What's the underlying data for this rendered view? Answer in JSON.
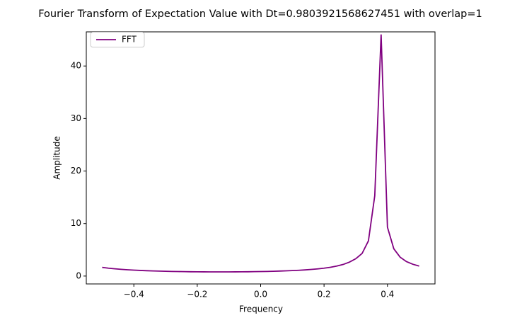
{
  "chart_data": {
    "type": "line",
    "title": "Fourier Transform of Expectation Value with Dt=0.9803921568627451 with overlap=1",
    "xlabel": "Frequency",
    "ylabel": "Amplitude",
    "x": [
      -0.5,
      -0.48,
      -0.46,
      -0.44,
      -0.42,
      -0.4,
      -0.38,
      -0.36,
      -0.34,
      -0.32,
      -0.3,
      -0.28,
      -0.26,
      -0.24,
      -0.22,
      -0.2,
      -0.18,
      -0.16,
      -0.14,
      -0.12,
      -0.1,
      -0.08,
      -0.06,
      -0.04,
      -0.02,
      0,
      0.02,
      0.04,
      0.06,
      0.08,
      0.1,
      0.12,
      0.14,
      0.16,
      0.18,
      0.2,
      0.22,
      0.24,
      0.26,
      0.28,
      0.3,
      0.32,
      0.34,
      0.36,
      0.38,
      0.4,
      0.42,
      0.44,
      0.46,
      0.48,
      0.5
    ],
    "series": [
      {
        "name": "FFT",
        "color": "#800080",
        "values": [
          1.65,
          1.5,
          1.38,
          1.28,
          1.2,
          1.13,
          1.07,
          1.02,
          0.98,
          0.94,
          0.91,
          0.88,
          0.86,
          0.84,
          0.82,
          0.81,
          0.8,
          0.79,
          0.79,
          0.79,
          0.79,
          0.8,
          0.81,
          0.82,
          0.84,
          0.86,
          0.88,
          0.91,
          0.95,
          0.99,
          1.04,
          1.1,
          1.17,
          1.26,
          1.37,
          1.5,
          1.67,
          1.9,
          2.2,
          2.65,
          3.3,
          4.3,
          6.7,
          15.3,
          46.0,
          9.3,
          5.2,
          3.6,
          2.75,
          2.25,
          1.9
        ]
      }
    ],
    "xlim": [
      -0.55,
      0.55
    ],
    "xticks": [
      {
        "value": -0.4,
        "label": "−0.4"
      },
      {
        "value": -0.2,
        "label": "−0.2"
      },
      {
        "value": 0,
        "label": "0.0"
      },
      {
        "value": 0.2,
        "label": "0.2"
      },
      {
        "value": 0.4,
        "label": "0.4"
      }
    ],
    "ylim": [
      -1.5,
      46.5
    ],
    "yticks": [
      0,
      10,
      20,
      30,
      40
    ],
    "legend": "upper left"
  }
}
